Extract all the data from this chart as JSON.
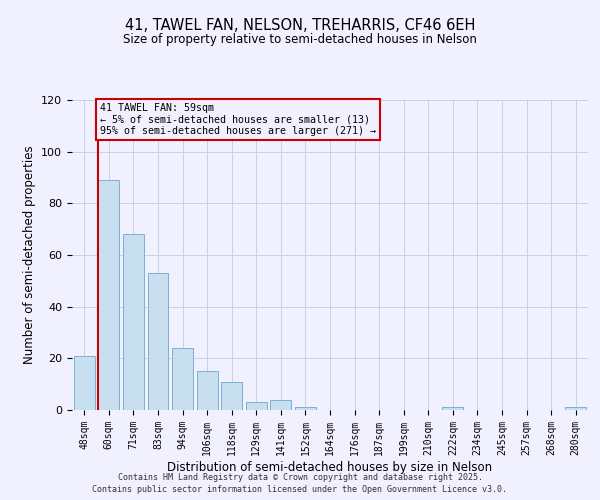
{
  "title": "41, TAWEL FAN, NELSON, TREHARRIS, CF46 6EH",
  "subtitle": "Size of property relative to semi-detached houses in Nelson",
  "xlabel": "Distribution of semi-detached houses by size in Nelson",
  "ylabel": "Number of semi-detached properties",
  "bar_labels": [
    "48sqm",
    "60sqm",
    "71sqm",
    "83sqm",
    "94sqm",
    "106sqm",
    "118sqm",
    "129sqm",
    "141sqm",
    "152sqm",
    "164sqm",
    "176sqm",
    "187sqm",
    "199sqm",
    "210sqm",
    "222sqm",
    "234sqm",
    "245sqm",
    "257sqm",
    "268sqm",
    "280sqm"
  ],
  "bar_values": [
    21,
    89,
    68,
    53,
    24,
    15,
    11,
    3,
    4,
    1,
    0,
    0,
    0,
    0,
    0,
    1,
    0,
    0,
    0,
    0,
    1
  ],
  "bar_color": "#c8dff0",
  "bar_edge_color": "#7aafd4",
  "vline_color": "#cc0000",
  "annotation_title": "41 TAWEL FAN: 59sqm",
  "annotation_line1": "← 5% of semi-detached houses are smaller (13)",
  "annotation_line2": "95% of semi-detached houses are larger (271) →",
  "annotation_box_color": "#cc0000",
  "ylim": [
    0,
    120
  ],
  "yticks": [
    0,
    20,
    40,
    60,
    80,
    100,
    120
  ],
  "footer1": "Contains HM Land Registry data © Crown copyright and database right 2025.",
  "footer2": "Contains public sector information licensed under the Open Government Licence v3.0.",
  "background_color": "#f0f0ff",
  "grid_color": "#c8d0e8"
}
